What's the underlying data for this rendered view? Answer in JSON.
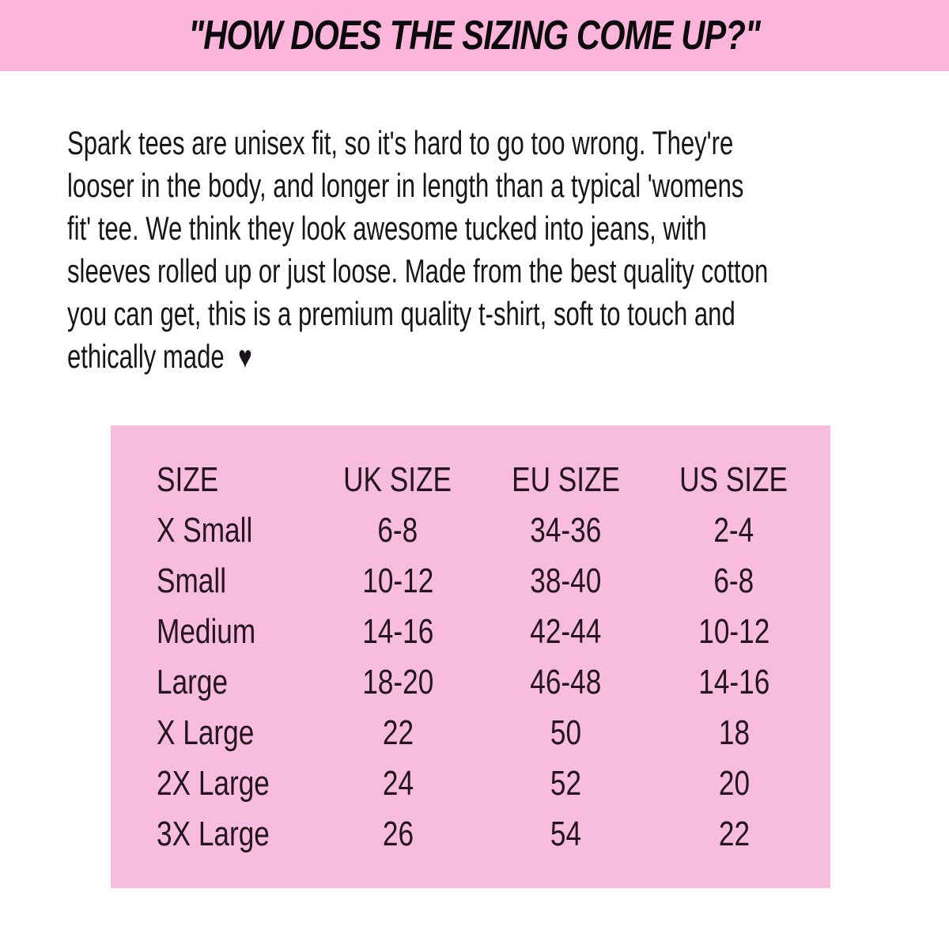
{
  "header": {
    "title": "\"HOW DOES THE SIZING COME UP?\"",
    "background": "#fbb5da",
    "text_color": "#0d0a0d"
  },
  "intro": {
    "lines": [
      "Spark tees are unisex fit, so it's hard to go too wrong. They're",
      "looser in the body, and longer in length than a typical 'womens",
      "fit' tee. We think they look awesome tucked into jeans, with",
      "sleeves rolled up or just loose. Made from the best quality cotton",
      "you can get, this is a premium quality t-shirt, soft to touch and",
      "ethically made"
    ],
    "heart_icon": "♥",
    "text_color": "#18141a"
  },
  "size_table": {
    "background": "#f8bcde",
    "text_color": "#241521",
    "columns": [
      "SIZE",
      "UK SIZE",
      "EU SIZE",
      "US SIZE"
    ],
    "rows": [
      {
        "size": "X Small",
        "uk": "6-8",
        "eu": "34-36",
        "us": "2-4"
      },
      {
        "size": "Small",
        "uk": "10-12",
        "eu": "38-40",
        "us": "6-8"
      },
      {
        "size": "Medium",
        "uk": "14-16",
        "eu": "42-44",
        "us": "10-12"
      },
      {
        "size": "Large",
        "uk": "18-20",
        "eu": "46-48",
        "us": "14-16"
      },
      {
        "size": "X Large",
        "uk": "22",
        "eu": "50",
        "us": "18"
      },
      {
        "size": "2X Large",
        "uk": "24",
        "eu": "52",
        "us": "20"
      },
      {
        "size": "3X Large",
        "uk": "26",
        "eu": "54",
        "us": "22"
      }
    ]
  }
}
